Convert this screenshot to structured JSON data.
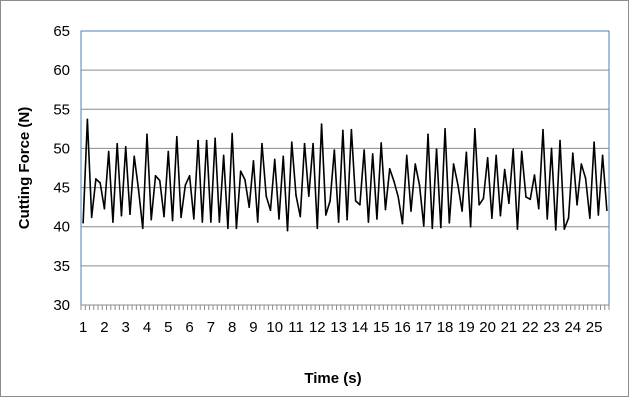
{
  "chart_data": {
    "type": "line",
    "title": "",
    "xlabel": "Time (s)",
    "ylabel": "Cutting Force (N)",
    "ylim": [
      30,
      65
    ],
    "y_ticks": [
      "30",
      "35",
      "40",
      "45",
      "50",
      "55",
      "60",
      "65"
    ],
    "x_tick_labels": [
      "1",
      "2",
      "3",
      "4",
      "5",
      "6",
      "7",
      "8",
      "9",
      "10",
      "11",
      "12",
      "13",
      "14",
      "15",
      "16",
      "17",
      "18",
      "19",
      "20",
      "21",
      "22",
      "23",
      "24",
      "25"
    ],
    "grid": "horizontal",
    "legend": "none",
    "colors": {
      "line": "#000000",
      "gridline": "#8c8c8c",
      "plot_border": "#4f81bd",
      "axis": "#8c8c8c"
    },
    "series": [
      {
        "values": [
          40.5,
          53.7,
          41.2,
          46.1,
          45.6,
          42.3,
          49.6,
          40.6,
          50.6,
          41.4,
          50.2,
          41.6,
          49.0,
          44.8,
          39.8,
          51.8,
          40.9,
          46.5,
          45.9,
          41.3,
          49.6,
          40.8,
          51.5,
          41.2,
          45.3,
          46.5,
          41.0,
          51.0,
          40.6,
          51.0,
          40.6,
          51.3,
          40.6,
          49.1,
          39.8,
          51.9,
          39.8,
          47.1,
          46.0,
          42.5,
          48.4,
          40.6,
          50.6,
          43.9,
          42.1,
          48.6,
          41.0,
          49.0,
          39.5,
          50.8,
          44.0,
          41.3,
          50.6,
          43.9,
          50.6,
          39.8,
          53.1,
          41.5,
          43.3,
          49.8,
          40.6,
          52.3,
          40.9,
          52.4,
          43.3,
          42.8,
          49.8,
          40.6,
          49.3,
          41.0,
          50.7,
          42.2,
          47.4,
          45.8,
          43.8,
          40.4,
          49.1,
          42.0,
          48.0,
          45.3,
          40.1,
          51.8,
          39.8,
          49.9,
          39.9,
          52.5,
          40.5,
          48.0,
          45.4,
          42.0,
          49.5,
          40.0,
          52.5,
          42.8,
          43.6,
          48.8,
          41.1,
          49.1,
          41.4,
          47.3,
          43.0,
          49.9,
          39.7,
          49.6,
          43.8,
          43.5,
          46.6,
          42.3,
          52.4,
          41.0,
          50.0,
          39.6,
          51.0,
          39.7,
          41.1,
          49.4,
          42.8,
          48.0,
          46.2,
          41.1,
          50.8,
          41.5,
          49.1,
          42.1
        ]
      }
    ]
  }
}
